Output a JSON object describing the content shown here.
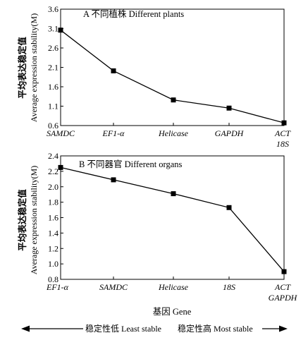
{
  "chart_data": [
    {
      "type": "line",
      "title": "A  不同植株 Different plants",
      "ylabel_cn": "平均表达稳定值",
      "ylabel": "Average expression stability(M)",
      "categories": [
        "SAMDC",
        "EF1-α",
        "Helicase",
        "GAPDH",
        "ACT\n18S"
      ],
      "values": [
        3.06,
        2.01,
        1.26,
        1.05,
        0.67
      ],
      "yticks": [
        "0.6",
        "1.1",
        "1.6",
        "2.1",
        "2.6",
        "3.1",
        "3.6"
      ],
      "ylim": [
        0.6,
        3.6
      ],
      "grid": false
    },
    {
      "type": "line",
      "title": "B  不同器官 Different organs",
      "ylabel_cn": "平均表达稳定值",
      "ylabel": "Average expression stability(M)",
      "categories": [
        "EF1-α",
        "SAMDC",
        "Helicase",
        "18S",
        "ACT\nGAPDH"
      ],
      "values": [
        2.25,
        2.09,
        1.91,
        1.73,
        0.9
      ],
      "yticks": [
        "0.8",
        "1.0",
        "1.2",
        "1.4",
        "1.6",
        "1.8",
        "2.0",
        "2.2",
        "2.4"
      ],
      "ylim": [
        0.8,
        2.4
      ],
      "grid": false
    }
  ],
  "xlabel": "基因 Gene",
  "stability_arrow": {
    "left": "稳定性低 Least stable",
    "right": "稳定性高 Most stable"
  },
  "colors": {
    "line": "#000000",
    "marker": "#000000",
    "axis": "#000000"
  }
}
